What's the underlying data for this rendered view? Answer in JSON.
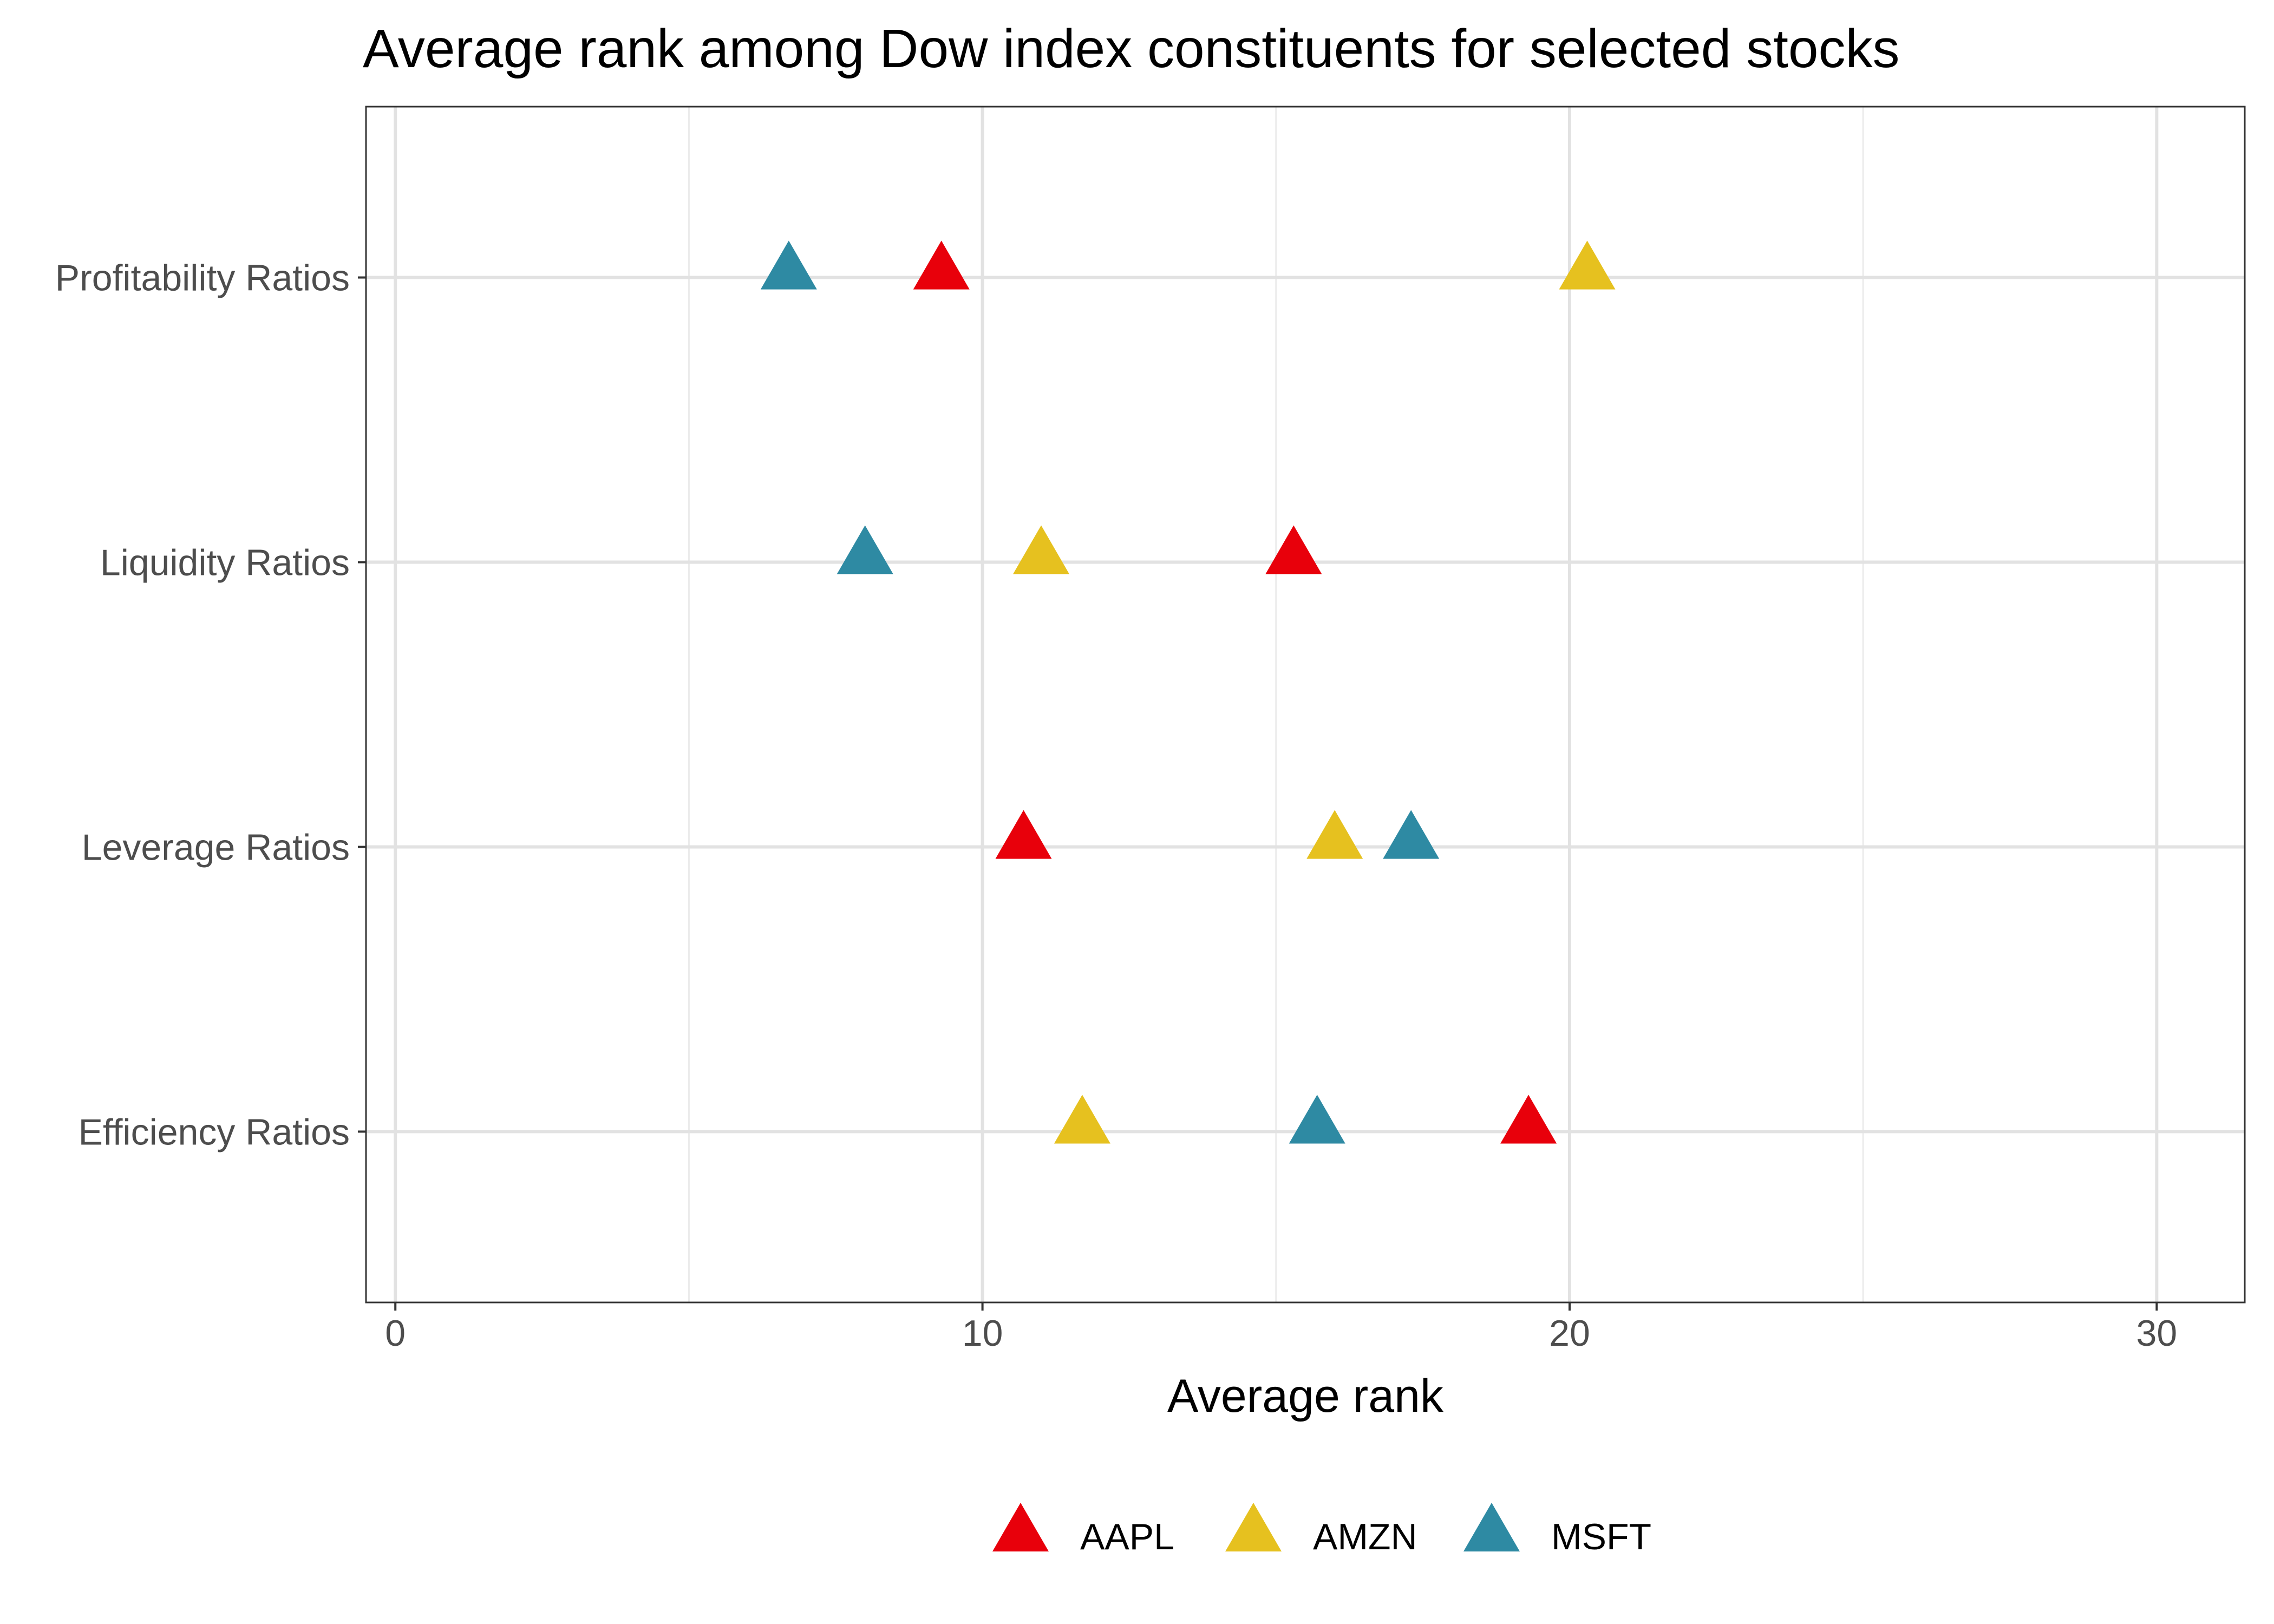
{
  "chart_data": {
    "type": "scatter",
    "title": "Average rank among Dow index constituents for selected stocks",
    "xlabel": "Average rank",
    "ylabel": "",
    "xlim": [
      -0.5,
      31.5
    ],
    "x_ticks": [
      0,
      10,
      20,
      30
    ],
    "x_tick_labels": [
      "0",
      "10",
      "20",
      "30"
    ],
    "categories": [
      "Profitability Ratios",
      "Liquidity Ratios",
      "Leverage Ratios",
      "Efficiency Ratios"
    ],
    "marker": "triangle",
    "grid": true,
    "legend_position": "bottom",
    "series": [
      {
        "name": "AAPL",
        "color": "#e8000b",
        "values": [
          9.3,
          15.3,
          10.7,
          19.3
        ]
      },
      {
        "name": "AMZN",
        "color": "#e6c11f",
        "values": [
          20.3,
          11.0,
          16.0,
          11.7
        ]
      },
      {
        "name": "MSFT",
        "color": "#2e8aa3",
        "values": [
          6.7,
          8.0,
          17.3,
          15.7
        ]
      }
    ]
  }
}
